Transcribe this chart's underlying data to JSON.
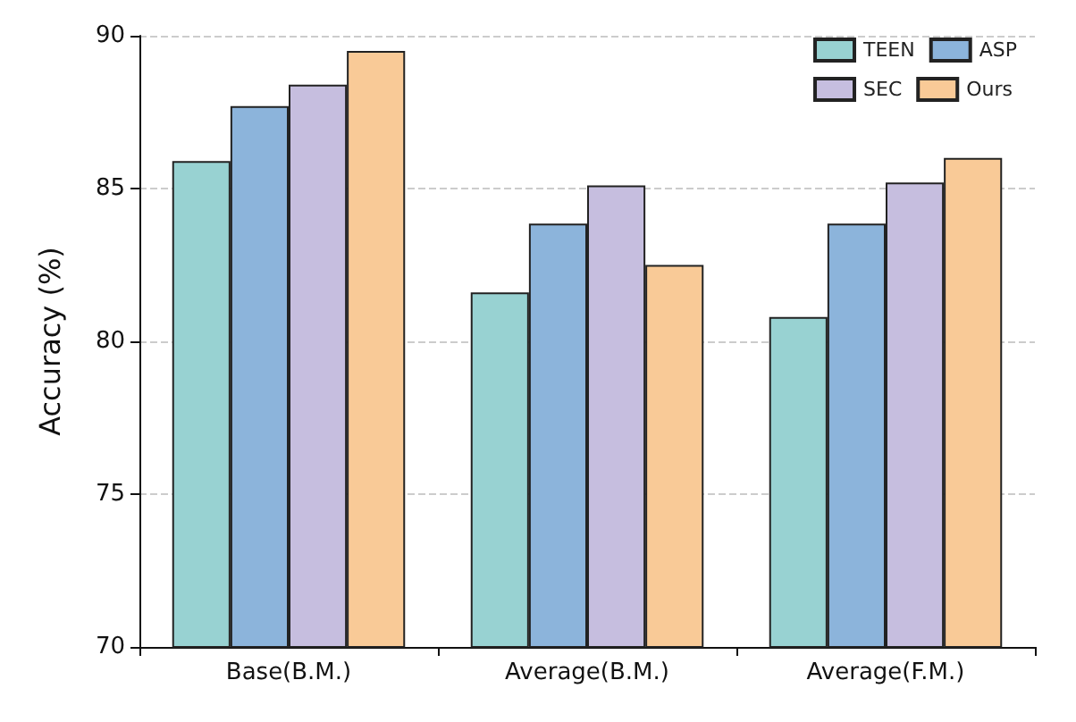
{
  "chart_data": {
    "type": "bar",
    "ylabel": "Accuracy (%)",
    "categories": [
      "Base(B.M.)",
      "Average(B.M.)",
      "Average(F.M.)"
    ],
    "series": [
      {
        "name": "TEEN",
        "color": "#98d2d2",
        "values": [
          85.9,
          81.6,
          80.8
        ]
      },
      {
        "name": "ASP",
        "color": "#8cb4db",
        "values": [
          87.7,
          83.85,
          83.85
        ]
      },
      {
        "name": "SEC",
        "color": "#c6bedf",
        "values": [
          88.4,
          85.1,
          85.2
        ]
      },
      {
        "name": "Ours",
        "color": "#f9ca97",
        "values": [
          89.5,
          82.5,
          86.0
        ]
      }
    ],
    "ylim": [
      70,
      90
    ],
    "yticks": [
      70,
      75,
      80,
      85,
      90
    ],
    "grid": "y",
    "legend": "top right"
  }
}
